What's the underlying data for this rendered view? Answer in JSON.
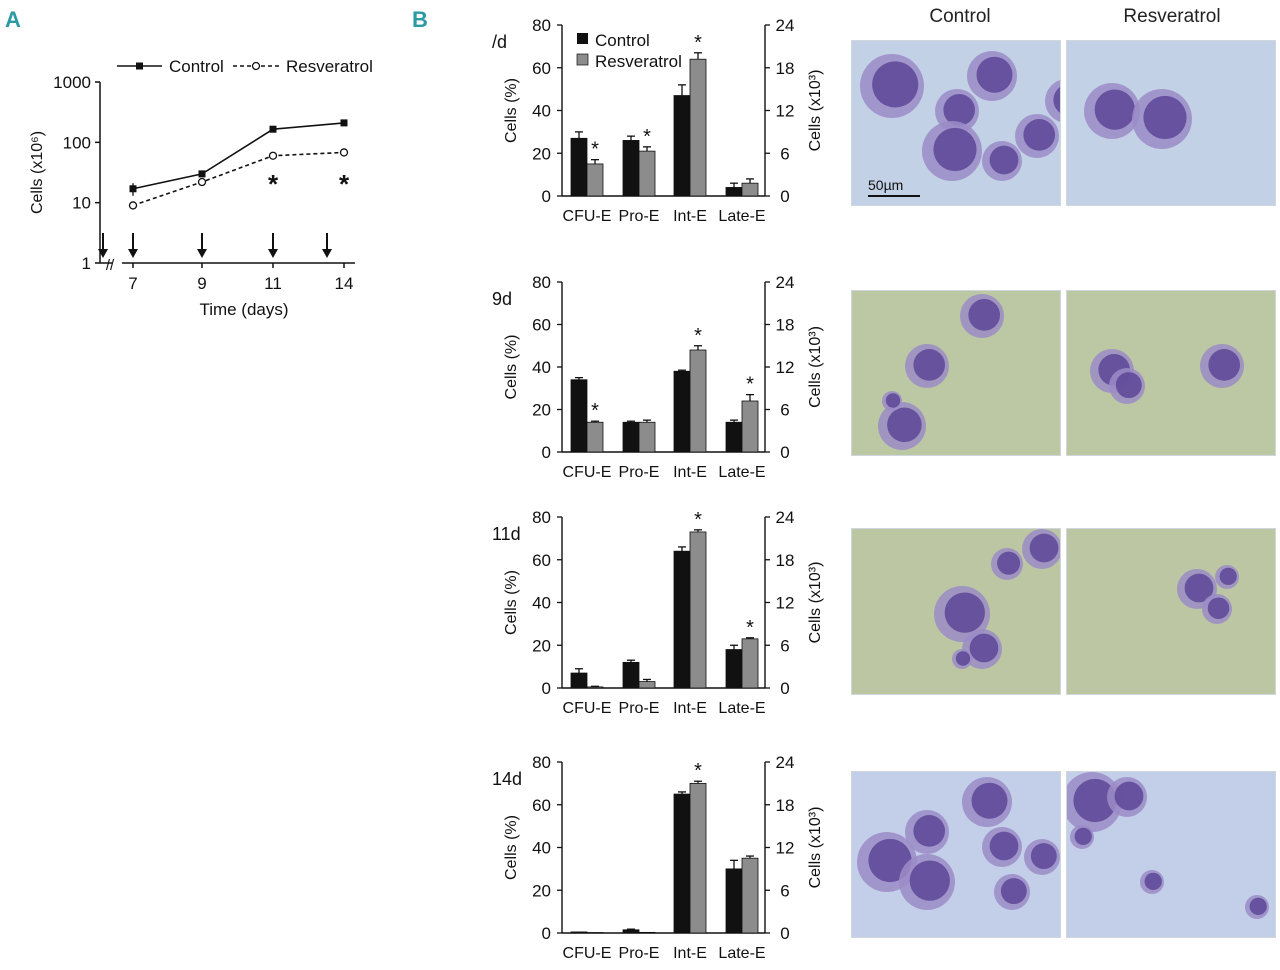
{
  "panel_labels": {
    "a": "A",
    "b": "B"
  },
  "photo_columns": [
    "Control",
    "Resveratrol"
  ],
  "scale_bar": "50µm",
  "colors": {
    "control": "#111111",
    "resveratrol": "#8c8c8c",
    "panel_label": "#2a9aa3"
  },
  "chart_data": [
    {
      "id": "growth",
      "type": "line",
      "xlabel": "Time (days)",
      "ylabel": "Cells (x10⁶)",
      "yscale": "log",
      "ylim": [
        1,
        1000
      ],
      "y_ticks": [
        "1",
        "10",
        "100",
        "1000"
      ],
      "x_ticks": [
        "7",
        "9",
        "11",
        "14"
      ],
      "axis_break": "//",
      "treatment_arrows_at_days": [
        5,
        7,
        9,
        11,
        13
      ],
      "x": [
        7,
        9,
        11,
        14
      ],
      "series": [
        {
          "name": "Control",
          "values": [
            17,
            30,
            165,
            210
          ],
          "errors": [
            4,
            3,
            10,
            12
          ],
          "style": "solid",
          "marker": "filled-square"
        },
        {
          "name": "Resveratrol",
          "values": [
            9,
            22,
            60,
            68
          ],
          "errors": [
            1,
            2,
            5,
            8
          ],
          "style": "dashed",
          "marker": "open-circle"
        }
      ],
      "significance": [
        "",
        "",
        "*",
        "*"
      ],
      "legend": [
        "Control",
        "Resveratrol"
      ]
    },
    {
      "id": "bars_7d",
      "type": "bar",
      "day_label": "/d",
      "categories": [
        "CFU-E",
        "Pro-E",
        "Int-E",
        "Late-E"
      ],
      "ylabel": "Cells (%)",
      "ylim": [
        0,
        80
      ],
      "y_ticks": [
        "0",
        "20",
        "40",
        "60",
        "80"
      ],
      "y2label": "Cells (x10³)",
      "y2_ticks": [
        "0",
        "6",
        "12",
        "18",
        "24"
      ],
      "legend": [
        "Control",
        "Resveratrol"
      ],
      "series": [
        {
          "name": "Control",
          "values": [
            27,
            26,
            47,
            4
          ],
          "errors": [
            3,
            2,
            5,
            2
          ]
        },
        {
          "name": "Resveratrol",
          "values": [
            15,
            21,
            64,
            6
          ],
          "errors": [
            2,
            2,
            3,
            2
          ]
        }
      ],
      "significance": [
        "*",
        "*",
        "*",
        ""
      ]
    },
    {
      "id": "bars_9d",
      "type": "bar",
      "day_label": "9d",
      "categories": [
        "CFU-E",
        "Pro-E",
        "Int-E",
        "Late-E"
      ],
      "ylabel": "Cells (%)",
      "ylim": [
        0,
        80
      ],
      "y_ticks": [
        "0",
        "20",
        "40",
        "60",
        "80"
      ],
      "y2label": "Cells (x10³)",
      "y2_ticks": [
        "0",
        "6",
        "12",
        "18",
        "24"
      ],
      "series": [
        {
          "name": "Control",
          "values": [
            34,
            14,
            38,
            14
          ],
          "errors": [
            1,
            0.5,
            0.5,
            1
          ]
        },
        {
          "name": "Resveratrol",
          "values": [
            14,
            14,
            48,
            24
          ],
          "errors": [
            0.5,
            1,
            2,
            3
          ]
        }
      ],
      "significance": [
        "*",
        "",
        "*",
        "*"
      ]
    },
    {
      "id": "bars_11d",
      "type": "bar",
      "day_label": "11d",
      "categories": [
        "CFU-E",
        "Pro-E",
        "Int-E",
        "Late-E"
      ],
      "ylabel": "Cells (%)",
      "ylim": [
        0,
        80
      ],
      "y_ticks": [
        "0",
        "20",
        "40",
        "60",
        "80"
      ],
      "y2label": "Cells (x10³)",
      "y2_ticks": [
        "0",
        "6",
        "12",
        "18",
        "24"
      ],
      "series": [
        {
          "name": "Control",
          "values": [
            7,
            12,
            64,
            18
          ],
          "errors": [
            2,
            1,
            2,
            2
          ]
        },
        {
          "name": "Resveratrol",
          "values": [
            0.5,
            3,
            73,
            23
          ],
          "errors": [
            0.3,
            1,
            1,
            0.5
          ]
        }
      ],
      "significance": [
        "",
        "",
        "*",
        "*"
      ]
    },
    {
      "id": "bars_14d",
      "type": "bar",
      "day_label": "14d",
      "categories": [
        "CFU-E",
        "Pro-E",
        "Int-E",
        "Late-E"
      ],
      "ylabel": "Cells (%)",
      "ylim": [
        0,
        80
      ],
      "y_ticks": [
        "0",
        "20",
        "40",
        "60",
        "80"
      ],
      "y2label": "Cells (x10³)",
      "y2_ticks": [
        "0",
        "6",
        "12",
        "18",
        "24"
      ],
      "series": [
        {
          "name": "Control",
          "values": [
            0.5,
            1.5,
            65,
            30
          ],
          "errors": [
            0.2,
            0.3,
            1,
            4
          ]
        },
        {
          "name": "Resveratrol",
          "values": [
            0.2,
            0.3,
            70,
            35
          ],
          "errors": [
            0.1,
            0.1,
            1,
            1
          ]
        }
      ],
      "significance": [
        "",
        "",
        "*",
        ""
      ]
    }
  ]
}
